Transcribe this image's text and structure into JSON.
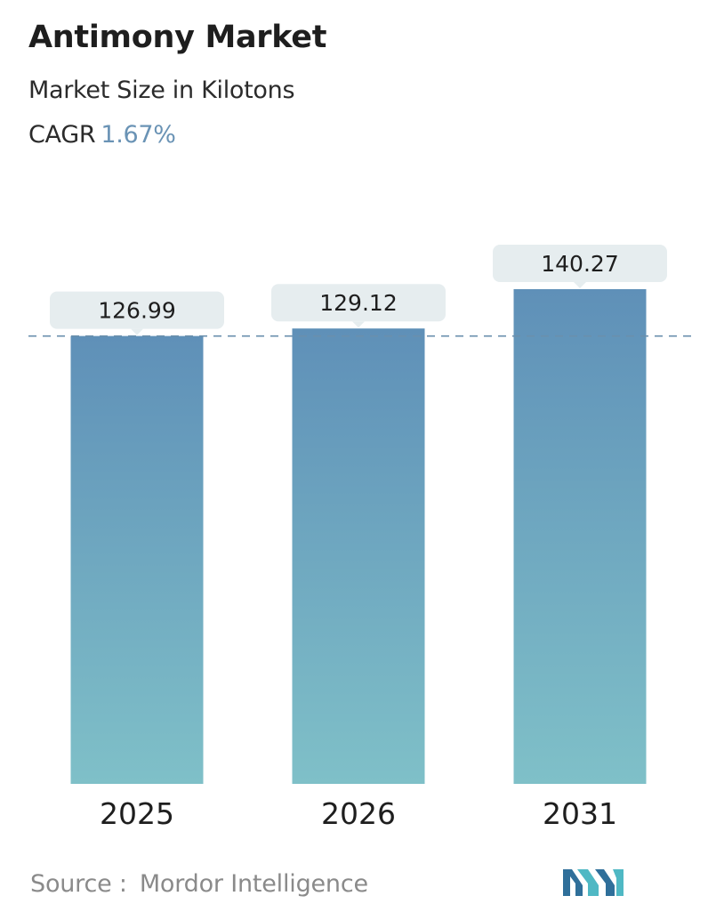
{
  "header": {
    "title": "Antimony Market",
    "subtitle": "Market Size in Kilotons",
    "cagr_label": "CAGR",
    "cagr_value": "1.67%"
  },
  "footer": {
    "source_label": "Source :",
    "source_name": "Mordor Intelligence",
    "logo_icon": "mordor-intelligence-logo-icon"
  },
  "colors": {
    "bar_top": "#5f90b8",
    "bar_bottom": "#7fc0c8",
    "label_box": "#e6edef",
    "dashed_line": "#6a8fad",
    "cagr_accent": "#6a93b5"
  },
  "chart_data": {
    "type": "bar",
    "categories": [
      "2025",
      "2026",
      "2031"
    ],
    "values": [
      126.99,
      129.12,
      140.27
    ],
    "value_labels": [
      "126.99",
      "129.12",
      "140.27"
    ],
    "title": "Antimony Market",
    "subtitle": "Market Size in Kilotons",
    "xlabel": "",
    "ylabel": "",
    "reference_line": 126.99,
    "grid": false,
    "legend": "none"
  }
}
